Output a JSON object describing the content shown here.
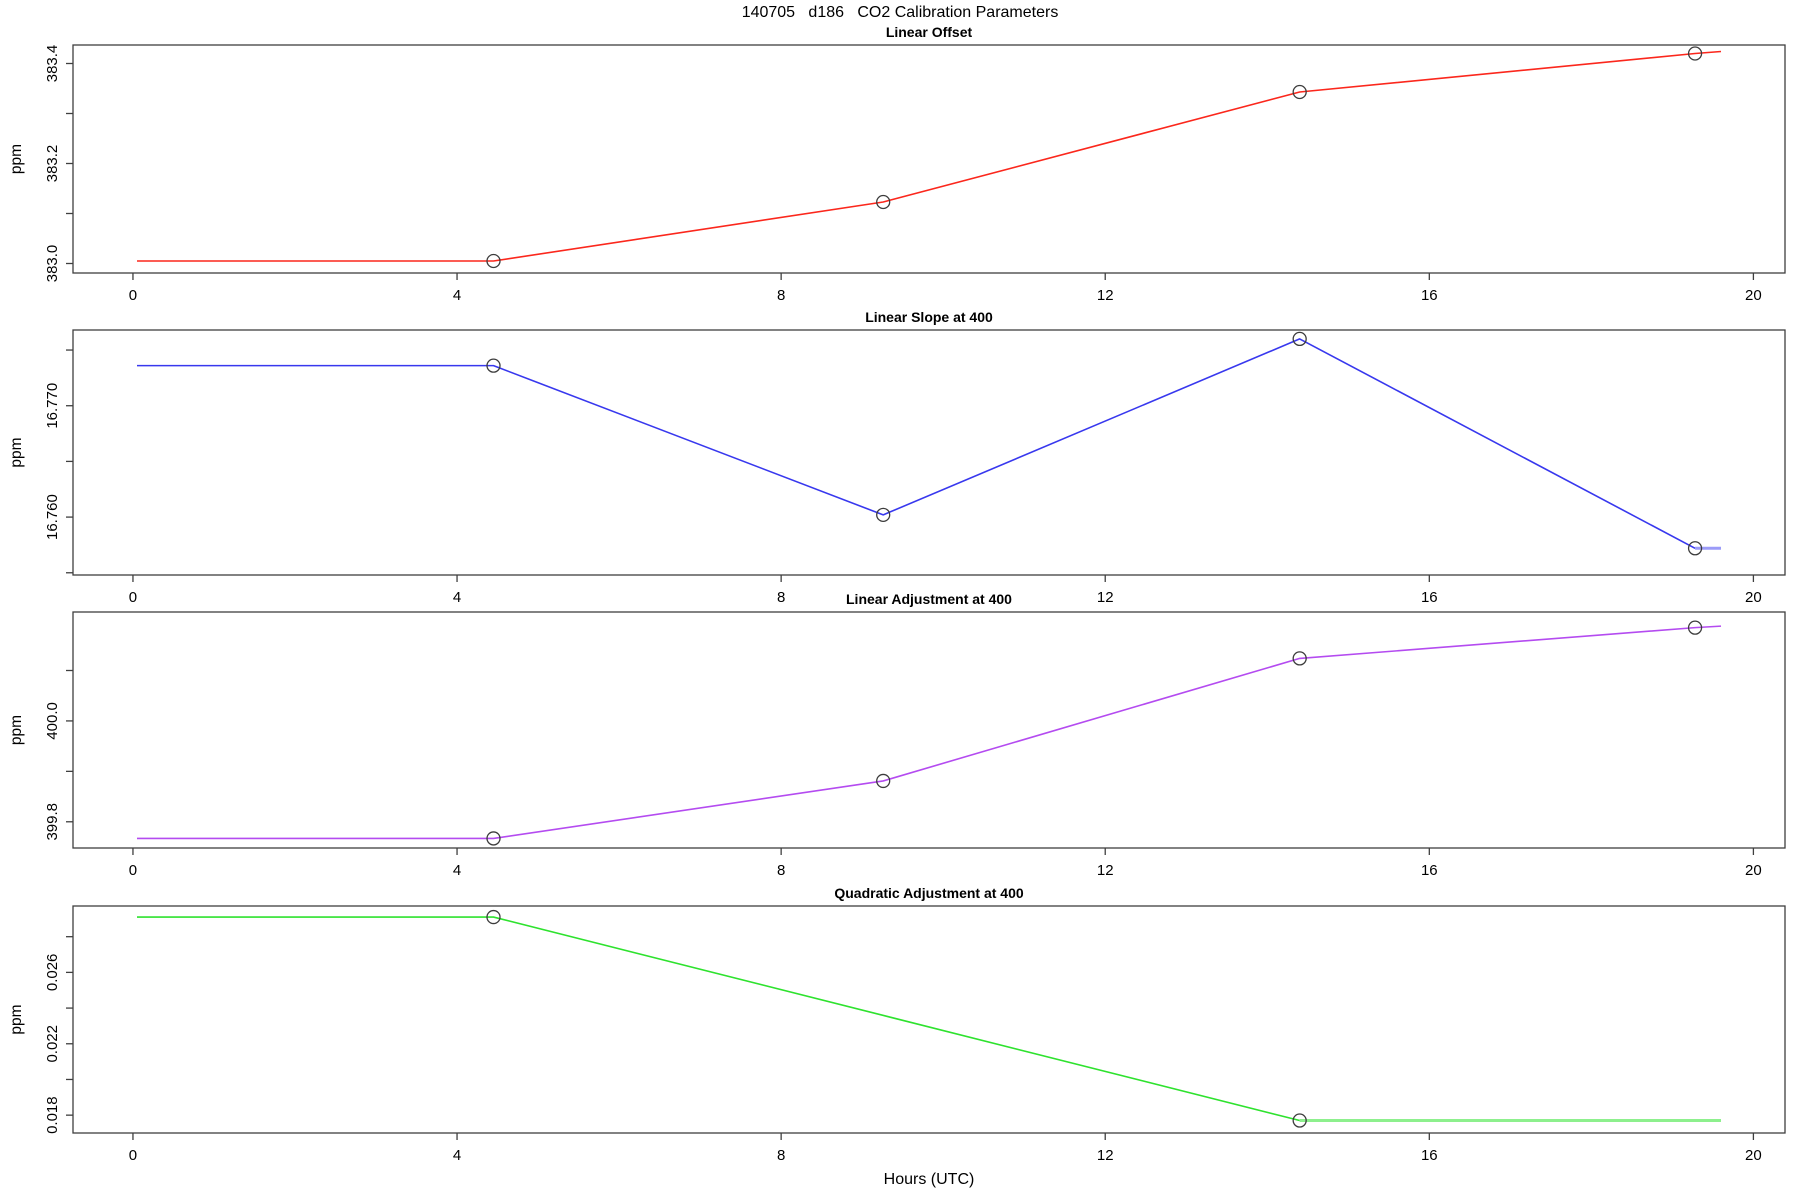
{
  "title": "140705   d186   CO2 Calibration Parameters",
  "xlabel": "Hours (UTC)",
  "colors": {
    "axis": "#3f3f3f",
    "text": "#000000",
    "marker": "#3c3c3c",
    "linear_offset": "#fb271c",
    "linear_slope": "#3838ee",
    "linear_adjustment": "#b44bf0",
    "quadratic_adjustment": "#2ee22e"
  },
  "x_ticks": [
    0,
    4,
    8,
    12,
    16,
    20
  ],
  "xlim": [
    -0.74,
    20.39
  ],
  "calibration_hours": [
    4.45,
    9.26,
    14.4,
    19.28
  ],
  "chart_data": [
    {
      "type": "line",
      "title": "Linear Offset",
      "ylabel": "ppm",
      "color": "#fb271c",
      "ylim": [
        382.981,
        383.437
      ],
      "yticks": [
        {
          "v": 383.0,
          "label": "383.0"
        },
        {
          "v": 383.1,
          "label": ""
        },
        {
          "v": 383.2,
          "label": "383.2"
        },
        {
          "v": 383.3,
          "label": ""
        },
        {
          "v": 383.4,
          "label": "383.4"
        }
      ],
      "line": {
        "x": [
          0.05,
          4.45,
          9.26,
          14.4,
          19.28,
          19.6
        ],
        "y": [
          383.005,
          383.005,
          383.123,
          383.343,
          383.42,
          383.424
        ]
      },
      "markers": {
        "shape": "open-circle",
        "x": [
          4.45,
          9.26,
          14.4,
          19.28
        ],
        "y": [
          383.005,
          383.123,
          383.343,
          383.42
        ]
      }
    },
    {
      "type": "line",
      "title": "Linear Slope at 400",
      "ylabel": "ppm",
      "color": "#3838ee",
      "ylim": [
        16.7548,
        16.7768
      ],
      "yticks": [
        {
          "v": 16.755,
          "label": ""
        },
        {
          "v": 16.76,
          "label": "16.760"
        },
        {
          "v": 16.765,
          "label": ""
        },
        {
          "v": 16.77,
          "label": "16.770"
        },
        {
          "v": 16.775,
          "label": ""
        }
      ],
      "line": {
        "x": [
          0.05,
          4.45,
          9.26,
          14.4,
          19.28
        ],
        "y": [
          16.7736,
          16.7736,
          16.7602,
          16.776,
          16.7572
        ]
      },
      "tail": {
        "x": [
          19.28,
          19.6
        ],
        "y": [
          16.7572,
          16.7572
        ],
        "color": "#9b9bf8",
        "width": 3
      },
      "markers": {
        "shape": "open-circle",
        "x": [
          4.45,
          9.26,
          14.4,
          19.28
        ],
        "y": [
          16.7736,
          16.7602,
          16.776,
          16.7572
        ]
      }
    },
    {
      "type": "line",
      "title": "Linear Adjustment at 400",
      "ylabel": "ppm",
      "color": "#b44bf0",
      "ylim": [
        399.748,
        400.216
      ],
      "yticks": [
        {
          "v": 399.8,
          "label": "399.8"
        },
        {
          "v": 399.9,
          "label": ""
        },
        {
          "v": 400.0,
          "label": "400.0"
        },
        {
          "v": 400.1,
          "label": ""
        }
      ],
      "line": {
        "x": [
          0.05,
          4.45,
          9.26,
          14.4,
          19.28,
          19.6
        ],
        "y": [
          399.767,
          399.767,
          399.881,
          400.124,
          400.185,
          400.188
        ]
      },
      "markers": {
        "shape": "open-circle",
        "x": [
          4.45,
          9.26,
          14.4,
          19.28
        ],
        "y": [
          399.767,
          399.881,
          400.124,
          400.185
        ]
      }
    },
    {
      "type": "line",
      "title": "Quadratic Adjustment at 400",
      "ylabel": "ppm",
      "color": "#2ee22e",
      "ylim": [
        0.017,
        0.02972
      ],
      "yticks": [
        {
          "v": 0.018,
          "label": "0.018"
        },
        {
          "v": 0.02,
          "label": ""
        },
        {
          "v": 0.022,
          "label": "0.022"
        },
        {
          "v": 0.024,
          "label": ""
        },
        {
          "v": 0.026,
          "label": "0.026"
        },
        {
          "v": 0.028,
          "label": ""
        }
      ],
      "line": {
        "x": [
          0.05,
          4.45,
          14.4
        ],
        "y": [
          0.0291,
          0.0291,
          0.0177
        ]
      },
      "tail": {
        "x": [
          14.4,
          19.6
        ],
        "y": [
          0.0177,
          0.0177
        ],
        "color": "#8df08d",
        "width": 3
      },
      "markers": {
        "shape": "open-circle",
        "x": [
          4.45,
          14.4
        ],
        "y": [
          0.0291,
          0.0177
        ]
      }
    }
  ]
}
